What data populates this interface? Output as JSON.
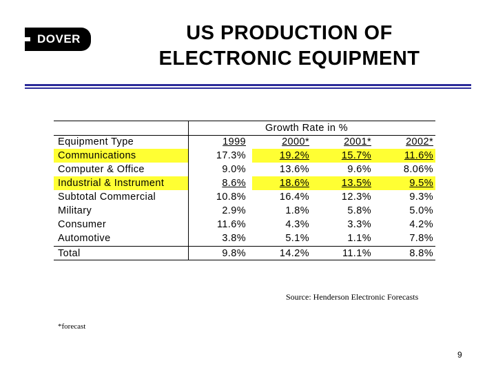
{
  "logo": {
    "text": "DOVER"
  },
  "title": {
    "line1": "US PRODUCTION OF",
    "line2": "ELECTRONIC EQUIPMENT"
  },
  "table": {
    "group_header": "Growth Rate in %",
    "col_header": "Equipment Type",
    "years": [
      "1999",
      "2000*",
      "2001*",
      "2002*"
    ],
    "rows": [
      {
        "label": "Communications",
        "values": [
          "17.3%",
          "19.2%",
          "15.7%",
          "11.6%"
        ]
      },
      {
        "label": "Computer & Office",
        "values": [
          "9.0%",
          "13.6%",
          "9.6%",
          "8.06%"
        ]
      },
      {
        "label": "Industrial & Instrument",
        "values": [
          "8.6%",
          "18.6%",
          "13.5%",
          "9.5%"
        ]
      },
      {
        "label": "Subtotal Commercial",
        "values": [
          "10.8%",
          "16.4%",
          "12.3%",
          "9.3%"
        ]
      },
      {
        "label": "Military",
        "values": [
          "2.9%",
          "1.8%",
          "5.8%",
          "5.0%"
        ]
      },
      {
        "label": "Consumer",
        "values": [
          "11.6%",
          "4.3%",
          "3.3%",
          "4.2%"
        ]
      },
      {
        "label": "Automotive",
        "values": [
          "3.8%",
          "5.1%",
          "1.1%",
          "7.8%"
        ]
      },
      {
        "label": "Total",
        "values": [
          "9.8%",
          "14.2%",
          "11.1%",
          "8.8%"
        ]
      }
    ]
  },
  "source": "Source: Henderson Electronic Forecasts",
  "footnote": "*forecast",
  "page_number": "9",
  "colors": {
    "highlight": "#ffff33",
    "rule": "#2b2b99"
  }
}
